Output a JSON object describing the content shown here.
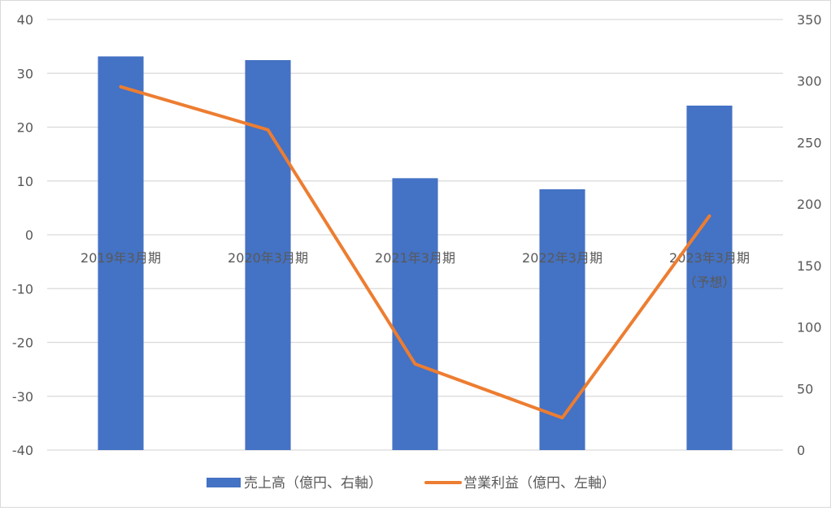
{
  "chart_data": {
    "type": "bar",
    "categories": [
      "2019年3月期",
      "2020年3月期",
      "2021年3月期",
      "2022年3月期",
      "2023年3月期（予想）"
    ],
    "category_lines": [
      [
        "2019年3月期"
      ],
      [
        "2020年3月期"
      ],
      [
        "2021年3月期"
      ],
      [
        "2022年3月期"
      ],
      [
        "2023年3月期",
        "（予想）"
      ]
    ],
    "series": [
      {
        "name": "売上高（億円、右軸）",
        "type": "bar",
        "axis": "right",
        "color": "#4472C4",
        "values": [
          320,
          317,
          221,
          212,
          280
        ]
      },
      {
        "name": "営業利益（億円、左軸）",
        "type": "line",
        "axis": "left",
        "color": "#ED7D31",
        "values": [
          27.5,
          19.5,
          -24.0,
          -34.0,
          3.5
        ]
      }
    ],
    "left_axis": {
      "min": -40,
      "max": 40,
      "ticks": [
        "40",
        "30",
        "20",
        "10",
        "0",
        "-10",
        "-20",
        "-30",
        "-40"
      ]
    },
    "right_axis": {
      "min": 0,
      "max": 350,
      "ticks": [
        "350",
        "300",
        "250",
        "200",
        "150",
        "100",
        "50",
        "0"
      ]
    },
    "grid": true,
    "legend_position": "bottom"
  }
}
